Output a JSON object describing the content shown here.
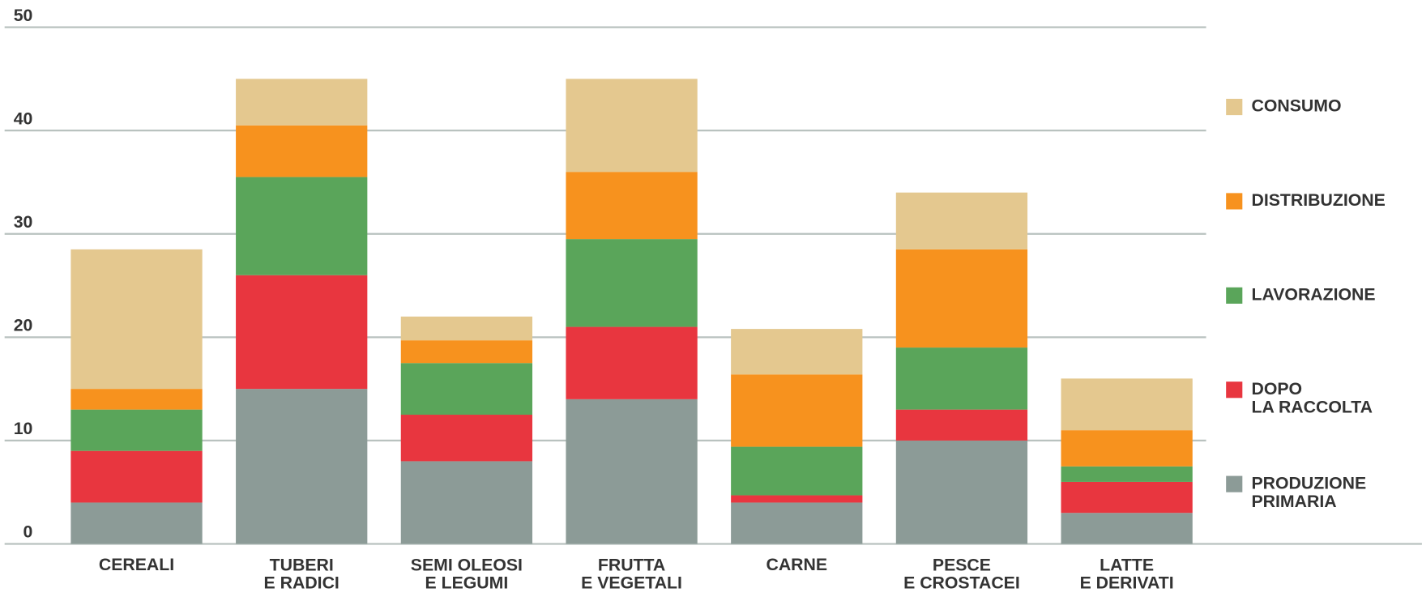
{
  "chart_data": {
    "type": "stacked_bar",
    "categories": [
      "CEREALI",
      "TUBERI\nE RADICI",
      "SEMI OLEOSI\nE LEGUMI",
      "FRUTTA\nE VEGETALI",
      "CARNE",
      "PESCE\nE CROSTACEI",
      "LATTE\nE DERIVATI"
    ],
    "series": [
      {
        "name": "PRODUZIONE\nPRIMARIA",
        "color": "#8c9b97",
        "values": [
          4,
          15,
          8,
          14,
          4,
          10,
          3
        ]
      },
      {
        "name": "DOPO\nLA RACCOLTA",
        "color": "#e8363f",
        "values": [
          5,
          11,
          4.5,
          7,
          0.7,
          3,
          3
        ]
      },
      {
        "name": "LAVORAZIONE",
        "color": "#5aa55a",
        "values": [
          4,
          9.5,
          5,
          8.5,
          4.7,
          6,
          1.5
        ]
      },
      {
        "name": "DISTRIBUZIONE",
        "color": "#f7921e",
        "values": [
          2,
          5,
          2.2,
          6.5,
          7,
          9.5,
          3.5
        ]
      },
      {
        "name": "CONSUMO",
        "color": "#e4c88f",
        "values": [
          13.5,
          4.5,
          2.3,
          9,
          4.4,
          5.5,
          5
        ]
      }
    ],
    "ylim": [
      0,
      50
    ],
    "yticks": [
      0,
      10,
      20,
      30,
      40,
      50
    ],
    "grid": true,
    "legend": "right"
  }
}
